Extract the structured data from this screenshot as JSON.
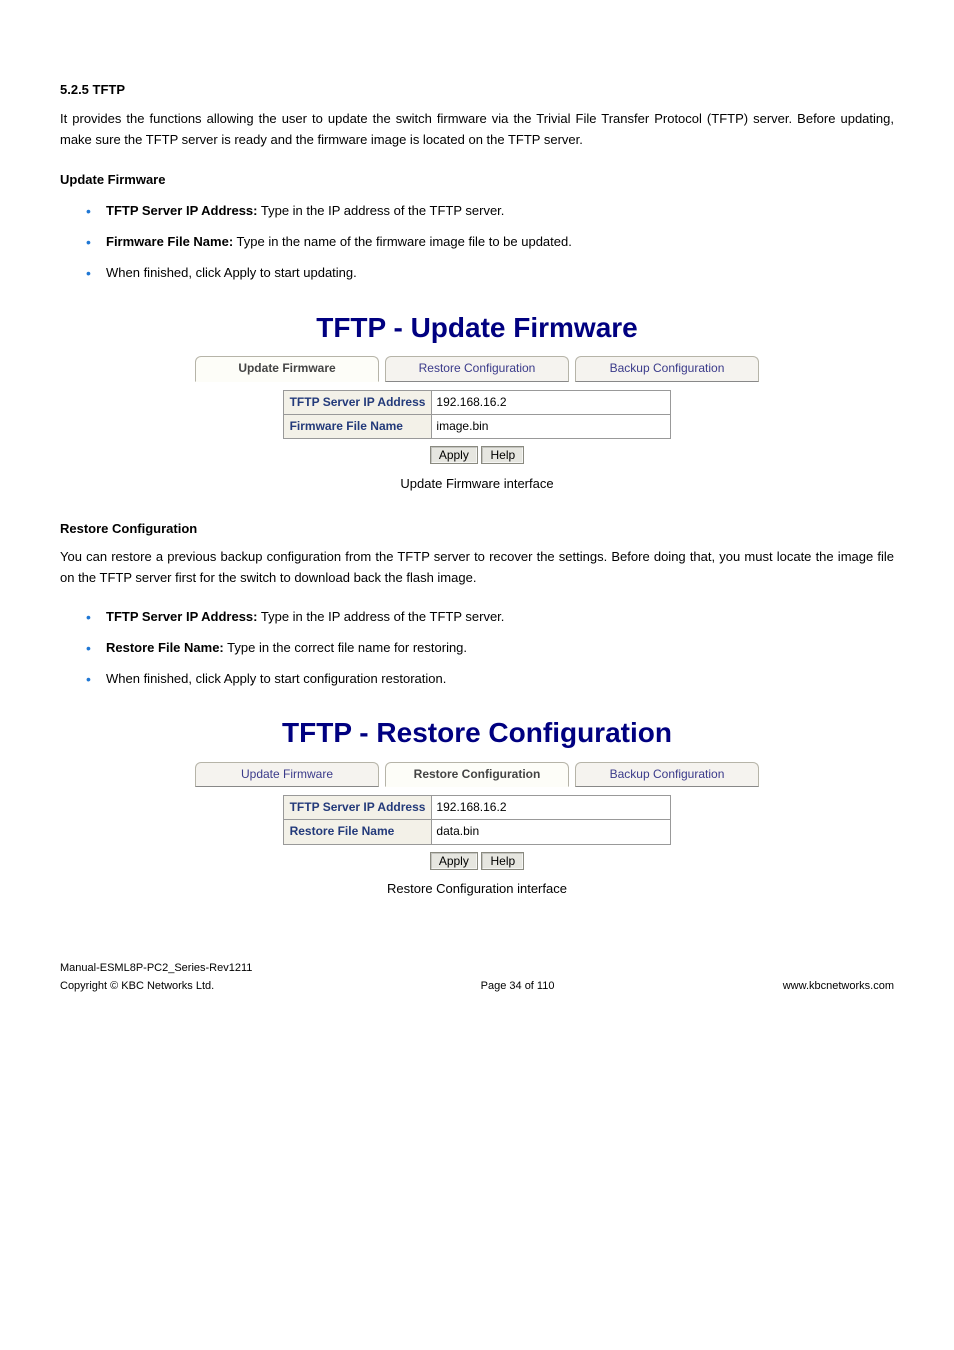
{
  "section": {
    "number_title": "5.2.5  TFTP",
    "intro": "It provides the functions allowing the user to update the switch firmware via the Trivial File Transfer Protocol (TFTP) server. Before updating, make sure the TFTP server is ready and the firmware image is located on the TFTP server."
  },
  "update_firmware": {
    "heading": "Update Firmware",
    "items": [
      {
        "bold": "TFTP Server IP Address:",
        "rest": " Type in the IP address of the TFTP server."
      },
      {
        "bold": "Firmware File Name:",
        "rest": " Type in the name of the firmware image file to be updated."
      },
      {
        "bold": "",
        "rest": "When finished, click Apply to start updating."
      }
    ],
    "figtitle": "TFTP - Update Firmware",
    "tabs": [
      "Update Firmware",
      "Restore Configuration",
      "Backup Configuration"
    ],
    "active_tab": 0,
    "form": {
      "ip_label": "TFTP Server IP Address",
      "ip_value": "192.168.16.2",
      "file_label": "Firmware File Name",
      "file_value": "image.bin"
    },
    "buttons": {
      "apply": "Apply",
      "help": "Help"
    },
    "caption": "Update Firmware interface"
  },
  "restore": {
    "heading": "Restore Configuration",
    "intro": "You can restore a previous backup configuration from the TFTP server to recover the settings. Before doing that, you must locate the image file on the TFTP server first for the switch to download back the flash image.",
    "items": [
      {
        "bold": "TFTP Server IP Address:",
        "rest": " Type in the IP address of the TFTP server."
      },
      {
        "bold": "Restore File Name:",
        "rest": " Type in the correct file name for restoring."
      },
      {
        "bold": "",
        "rest": "When finished, click Apply to start configuration restoration."
      }
    ],
    "figtitle": "TFTP - Restore Configuration",
    "tabs": [
      "Update Firmware",
      "Restore Configuration",
      "Backup Configuration"
    ],
    "active_tab": 1,
    "form": {
      "ip_label": "TFTP Server IP Address",
      "ip_value": "192.168.16.2",
      "file_label": "Restore File Name",
      "file_value": "data.bin"
    },
    "buttons": {
      "apply": "Apply",
      "help": "Help"
    },
    "caption": "Restore Configuration interface"
  },
  "footer": {
    "left1": "Manual-ESML8P-PC2_Series-Rev1211",
    "left2": "Copyright © KBC Networks Ltd.",
    "center": "Page 34 of 110",
    "right": "www.kbcnetworks.com"
  },
  "colors": {
    "accent": "#000080",
    "bullet": "#1f77d4",
    "labelbg": "#f3f1e8",
    "labeltext": "#233a7a"
  }
}
